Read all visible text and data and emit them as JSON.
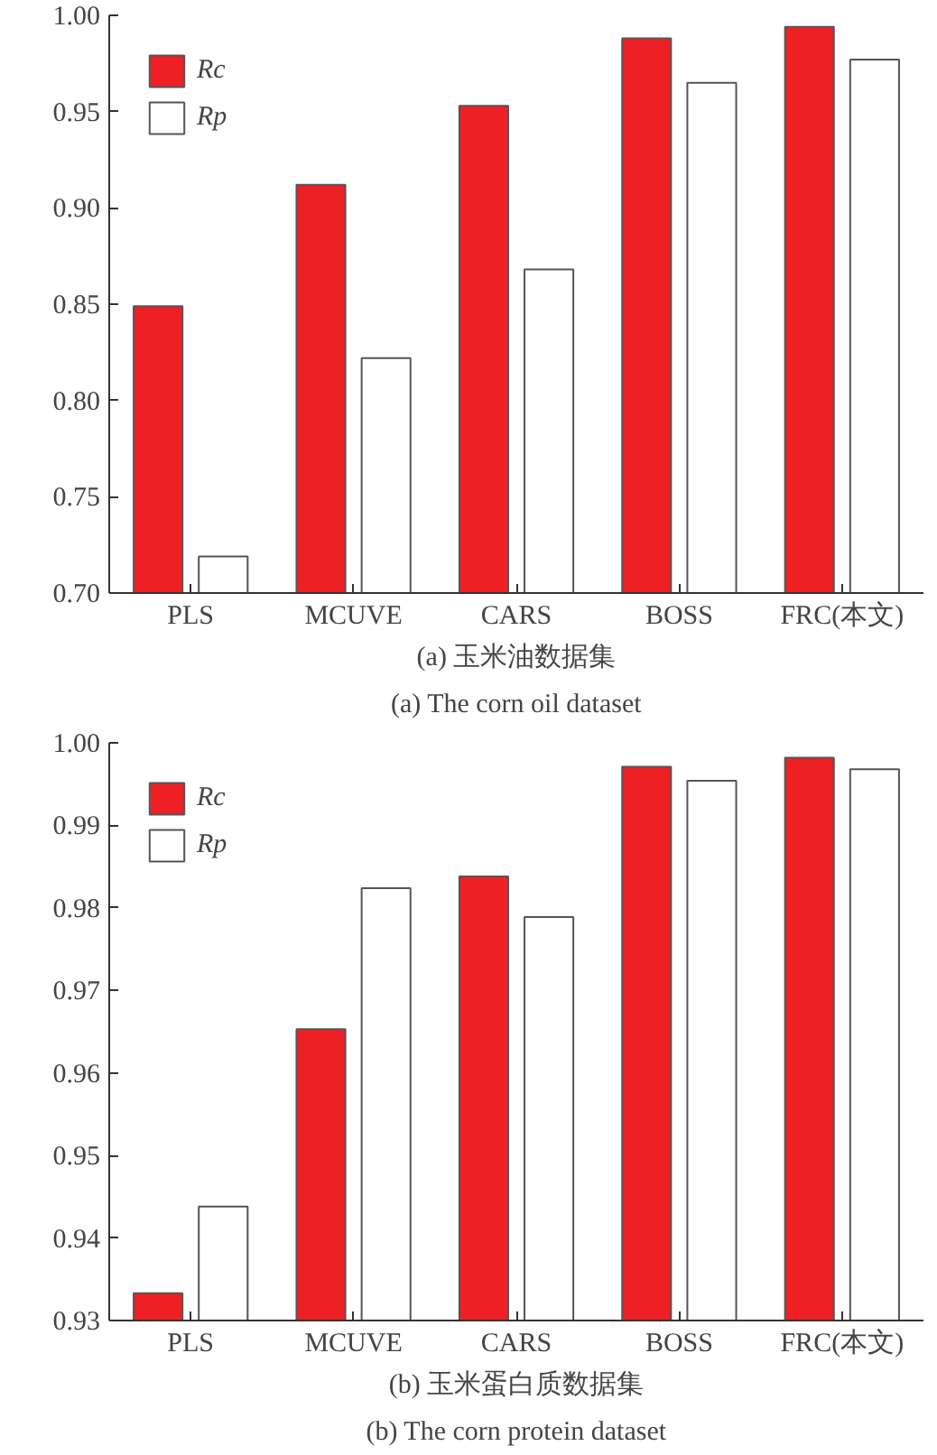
{
  "chart_data": [
    {
      "type": "bar",
      "xlabel": "(a) 玉米油数据集",
      "annotations": [
        "(a) The corn oil dataset"
      ],
      "categories": [
        "PLS",
        "MCUVE",
        "CARS",
        "BOSS",
        "FRC(本文)"
      ],
      "series": [
        {
          "name": "Rc",
          "color": "#ee2024",
          "values": [
            0.849,
            0.912,
            0.953,
            0.988,
            0.994
          ]
        },
        {
          "name": "Rp",
          "color": "#ffffff",
          "values": [
            0.719,
            0.822,
            0.868,
            0.965,
            0.977
          ]
        }
      ],
      "ylim": [
        0.7,
        1.0
      ],
      "yticks": [
        {
          "value": 0.7,
          "label": "0.70"
        },
        0.75,
        {
          "value": 0.8,
          "label": "0.80"
        },
        0.85,
        {
          "value": 0.9,
          "label": "0.90"
        },
        0.95,
        {
          "value": 1.0,
          "label": "1.00"
        }
      ],
      "grid": false,
      "legend": "top left"
    },
    {
      "type": "bar",
      "xlabel": "(b) 玉米蛋白质数据集",
      "annotations": [
        "(b) The corn protein dataset"
      ],
      "categories": [
        "PLS",
        "MCUVE",
        "CARS",
        "BOSS",
        "FRC(本文)"
      ],
      "series": [
        {
          "name": "Rc",
          "color": "#ee2024",
          "values": [
            0.9333,
            0.9653,
            0.9838,
            0.9971,
            0.9982
          ]
        },
        {
          "name": "Rp",
          "color": "#ffffff",
          "values": [
            0.9438,
            0.9824,
            0.9789,
            0.9954,
            0.9968
          ]
        }
      ],
      "ylim": [
        0.93,
        1.0
      ],
      "yticks": [
        0.93,
        0.94,
        0.95,
        0.96,
        0.97,
        0.98,
        0.99,
        {
          "value": 1.0,
          "label": "1.00"
        }
      ],
      "grid": false,
      "legend": "top left"
    }
  ]
}
